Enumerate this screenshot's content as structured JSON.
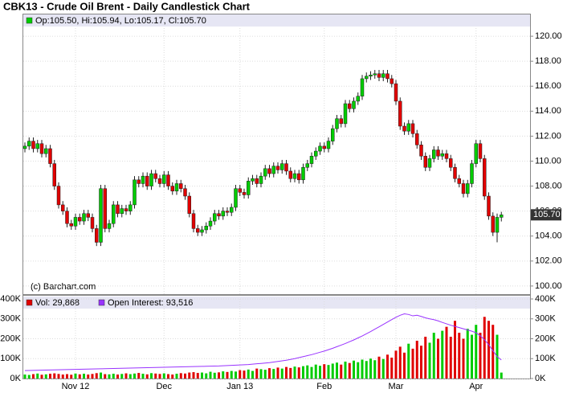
{
  "chart_data": {
    "type": "candlestick",
    "title": "CBK13 - Crude Oil Brent - Daily Candlestick Chart",
    "watermark": "(c) Barchart.com",
    "price_legend": "Op:105.50, Hi:105.94, Lo:105.17, Cl:105.70",
    "last_label": "105.70",
    "up_color": "#00cc00",
    "down_color": "#e00000",
    "grid": true,
    "categories": [
      null,
      null,
      null,
      null,
      null,
      null,
      null,
      null,
      null,
      null,
      null,
      null,
      "Nov 12",
      null,
      null,
      null,
      null,
      null,
      null,
      null,
      null,
      null,
      null,
      null,
      null,
      null,
      null,
      null,
      null,
      null,
      null,
      null,
      null,
      "Dec",
      null,
      null,
      null,
      null,
      null,
      null,
      null,
      null,
      null,
      null,
      null,
      null,
      null,
      null,
      null,
      null,
      null,
      "Jan 13",
      null,
      null,
      null,
      null,
      null,
      null,
      null,
      null,
      null,
      null,
      null,
      null,
      null,
      null,
      null,
      null,
      null,
      null,
      null,
      "Feb",
      null,
      null,
      null,
      null,
      null,
      null,
      null,
      null,
      null,
      null,
      null,
      null,
      null,
      null,
      null,
      null,
      "Mar",
      null,
      null,
      null,
      null,
      null,
      null,
      null,
      null,
      null,
      null,
      null,
      null,
      null,
      null,
      null,
      null,
      null,
      null,
      "Apr",
      null,
      null,
      null,
      null,
      null,
      null
    ],
    "open": [
      111.0,
      111.2,
      111.6,
      111.0,
      111.4,
      110.6,
      111.0,
      109.8,
      108.0,
      106.5,
      106.0,
      105.0,
      104.8,
      105.5,
      105.2,
      105.8,
      105.5,
      104.6,
      103.5,
      107.8,
      104.6,
      105.0,
      106.5,
      105.8,
      106.2,
      106.0,
      106.5,
      108.5,
      108.2,
      108.8,
      108.0,
      109.0,
      108.6,
      108.2,
      108.9,
      108.0,
      107.6,
      108.2,
      107.8,
      107.2,
      105.8,
      104.6,
      104.3,
      104.5,
      104.8,
      105.2,
      105.8,
      105.6,
      106.0,
      105.9,
      106.3,
      107.8,
      107.5,
      107.3,
      108.4,
      108.6,
      108.2,
      108.8,
      109.4,
      109.0,
      109.6,
      109.3,
      109.8,
      109.2,
      108.6,
      109.0,
      108.5,
      109.5,
      109.8,
      110.4,
      110.8,
      111.2,
      111.0,
      111.6,
      112.6,
      113.4,
      113.0,
      114.6,
      114.2,
      114.8,
      115.2,
      116.6,
      116.8,
      116.9,
      117.0,
      116.7,
      117.0,
      116.6,
      116.2,
      114.8,
      112.8,
      112.4,
      113.0,
      112.2,
      111.3,
      110.4,
      109.5,
      110.2,
      110.9,
      110.4,
      110.6,
      110.2,
      109.5,
      108.6,
      108.2,
      107.4,
      108.2,
      109.8,
      111.4,
      110.2,
      107.2,
      105.6,
      104.3,
      105.5
    ],
    "high": [
      111.5,
      111.9,
      111.9,
      111.7,
      111.7,
      111.3,
      111.3,
      110.1,
      108.3,
      106.8,
      106.3,
      105.3,
      105.8,
      105.8,
      106.1,
      106.1,
      105.8,
      104.9,
      108.1,
      108.1,
      105.3,
      106.8,
      106.8,
      106.5,
      106.5,
      106.8,
      108.8,
      108.8,
      109.1,
      109.1,
      109.3,
      109.3,
      108.9,
      109.2,
      109.2,
      108.3,
      108.5,
      108.5,
      108.1,
      107.5,
      106.1,
      104.9,
      104.8,
      105.1,
      105.5,
      106.1,
      106.1,
      106.3,
      106.3,
      106.6,
      108.1,
      108.1,
      107.8,
      108.7,
      108.9,
      108.9,
      109.1,
      109.7,
      109.7,
      109.9,
      109.9,
      110.1,
      110.1,
      109.5,
      109.3,
      109.3,
      109.8,
      110.1,
      110.7,
      111.1,
      111.5,
      111.5,
      111.9,
      112.9,
      113.7,
      113.7,
      114.9,
      114.9,
      115.1,
      115.5,
      116.9,
      117.1,
      117.2,
      117.3,
      117.3,
      117.3,
      117.3,
      116.9,
      116.5,
      115.1,
      113.1,
      113.3,
      113.3,
      112.5,
      111.6,
      110.7,
      110.5,
      111.2,
      111.2,
      110.9,
      110.9,
      110.5,
      109.8,
      108.9,
      108.5,
      108.5,
      110.1,
      111.7,
      111.7,
      110.5,
      107.5,
      105.9,
      105.8,
      105.94
    ],
    "low": [
      110.7,
      110.9,
      110.7,
      110.7,
      110.3,
      110.3,
      109.5,
      107.7,
      106.2,
      105.7,
      104.7,
      104.5,
      104.5,
      104.9,
      104.9,
      105.2,
      104.3,
      103.2,
      103.2,
      104.3,
      104.3,
      104.7,
      105.5,
      105.5,
      105.7,
      105.7,
      106.2,
      107.9,
      107.9,
      107.7,
      107.7,
      108.3,
      107.9,
      107.9,
      107.7,
      107.3,
      107.3,
      107.5,
      106.9,
      105.5,
      104.3,
      104.0,
      104.0,
      104.2,
      104.5,
      104.9,
      105.3,
      105.3,
      105.6,
      105.6,
      106.0,
      107.2,
      107.0,
      107.0,
      108.1,
      107.9,
      107.9,
      108.5,
      108.7,
      108.7,
      109.0,
      109.0,
      108.9,
      108.3,
      108.3,
      108.2,
      108.2,
      109.2,
      109.5,
      110.1,
      110.5,
      110.7,
      110.7,
      111.3,
      112.3,
      112.7,
      112.7,
      113.9,
      113.9,
      114.5,
      114.9,
      116.3,
      116.5,
      116.6,
      116.4,
      116.4,
      116.3,
      115.9,
      114.5,
      112.5,
      112.1,
      112.1,
      111.9,
      111.0,
      110.1,
      109.2,
      109.2,
      109.9,
      110.1,
      110.1,
      109.9,
      109.2,
      108.3,
      107.9,
      107.1,
      107.1,
      107.9,
      109.5,
      109.9,
      106.9,
      105.3,
      104.0,
      103.5,
      105.17
    ],
    "close": [
      111.2,
      111.6,
      111.0,
      111.4,
      110.6,
      111.0,
      109.8,
      108.0,
      106.5,
      106.0,
      105.0,
      104.8,
      105.5,
      105.2,
      105.8,
      105.5,
      104.6,
      103.5,
      107.8,
      104.6,
      105.0,
      106.5,
      105.8,
      106.2,
      106.0,
      106.5,
      108.5,
      108.2,
      108.8,
      108.0,
      109.0,
      108.6,
      108.2,
      108.9,
      108.0,
      107.6,
      108.2,
      107.8,
      107.2,
      105.8,
      104.6,
      104.3,
      104.5,
      104.8,
      105.2,
      105.8,
      105.6,
      106.0,
      105.9,
      106.3,
      107.8,
      107.5,
      107.3,
      108.4,
      108.6,
      108.2,
      108.8,
      109.4,
      109.0,
      109.6,
      109.3,
      109.8,
      109.2,
      108.6,
      109.0,
      108.5,
      109.5,
      109.8,
      110.4,
      110.8,
      111.2,
      111.0,
      111.6,
      112.6,
      113.4,
      113.0,
      114.6,
      114.2,
      114.8,
      115.2,
      116.6,
      116.8,
      116.9,
      117.0,
      116.7,
      117.0,
      116.6,
      116.2,
      114.8,
      112.8,
      112.4,
      113.0,
      112.2,
      111.3,
      110.4,
      109.5,
      110.2,
      110.9,
      110.4,
      110.6,
      110.2,
      109.5,
      108.6,
      108.2,
      107.4,
      108.2,
      109.8,
      111.4,
      110.2,
      107.2,
      105.6,
      104.3,
      105.5,
      105.7
    ],
    "ylim": [
      99.35,
      120.65
    ],
    "yticks": [
      {
        "value": 100,
        "label": "100.00"
      },
      {
        "value": 102,
        "label": "102.00"
      },
      {
        "value": 104,
        "label": "104.00"
      },
      {
        "value": 106,
        "label": "106.00"
      },
      {
        "value": 108,
        "label": "108.00"
      },
      {
        "value": 110,
        "label": "110.00"
      },
      {
        "value": 112,
        "label": "112.00"
      },
      {
        "value": 114,
        "label": "114.00"
      },
      {
        "value": 116,
        "label": "116.00"
      },
      {
        "value": 118,
        "label": "118.00"
      },
      {
        "value": 120,
        "label": "120.00"
      }
    ],
    "volume": {
      "legend": "Vol: 29,868",
      "color": "#e00000",
      "values": [
        20000,
        18000,
        22000,
        25000,
        19000,
        21000,
        24000,
        26000,
        23000,
        20000,
        22000,
        19000,
        25000,
        21000,
        24000,
        20000,
        23000,
        27000,
        30000,
        22000,
        21000,
        24000,
        20000,
        23000,
        26000,
        22000,
        25000,
        28000,
        24000,
        21000,
        27000,
        25000,
        23000,
        26000,
        22000,
        20000,
        24000,
        27000,
        25000,
        30000,
        32000,
        28000,
        30000,
        26000,
        34000,
        29000,
        31000,
        36000,
        33000,
        38000,
        35000,
        42000,
        40000,
        45000,
        38000,
        50000,
        47000,
        44000,
        52000,
        48000,
        55000,
        50000,
        58000,
        53000,
        60000,
        56000,
        62000,
        66000,
        58000,
        70000,
        64000,
        72000,
        68000,
        75000,
        80000,
        70000,
        85000,
        78000,
        90000,
        82000,
        95000,
        88000,
        100000,
        92000,
        110000,
        98000,
        120000,
        105000,
        140000,
        160000,
        130000,
        175000,
        150000,
        190000,
        165000,
        210000,
        180000,
        230000,
        200000,
        240000,
        260000,
        210000,
        290000,
        230000,
        200000,
        250000,
        220000,
        270000,
        230000,
        310000,
        290000,
        270000,
        220000,
        29868
      ]
    },
    "open_interest": {
      "legend": "Open Interest: 93,516",
      "color": "#9933ff",
      "values": [
        40000,
        40500,
        41000,
        41500,
        42000,
        42500,
        43000,
        43500,
        44000,
        44500,
        45000,
        45500,
        46000,
        46500,
        47000,
        47500,
        48000,
        48500,
        49000,
        49500,
        50000,
        50500,
        51000,
        51500,
        52000,
        52500,
        53000,
        53500,
        54000,
        54500,
        55000,
        55500,
        56000,
        56500,
        57000,
        57500,
        58000,
        58500,
        59000,
        59500,
        60000,
        60500,
        61000,
        61500,
        62000,
        62500,
        63000,
        64000,
        65000,
        66000,
        67000,
        68000,
        69000,
        70000,
        72000,
        74000,
        76000,
        78000,
        80000,
        83000,
        86000,
        89000,
        92000,
        96000,
        100000,
        105000,
        110000,
        115000,
        120000,
        126000,
        132000,
        138000,
        145000,
        152000,
        160000,
        168000,
        176000,
        185000,
        194000,
        204000,
        214000,
        225000,
        236000,
        248000,
        260000,
        272000,
        284000,
        296000,
        308000,
        318000,
        325000,
        322000,
        315000,
        318000,
        312000,
        305000,
        300000,
        296000,
        290000,
        282000,
        275000,
        268000,
        262000,
        256000,
        250000,
        244000,
        238000,
        230000,
        215000,
        195000,
        170000,
        140000,
        110000,
        93516
      ]
    },
    "y2lim": [
      0,
      400000
    ],
    "y2ticks": [
      {
        "value": 0,
        "label": "0K"
      },
      {
        "value": 100000,
        "label": "100K"
      },
      {
        "value": 200000,
        "label": "200K"
      },
      {
        "value": 300000,
        "label": "300K"
      },
      {
        "value": 400000,
        "label": "400K"
      }
    ]
  }
}
